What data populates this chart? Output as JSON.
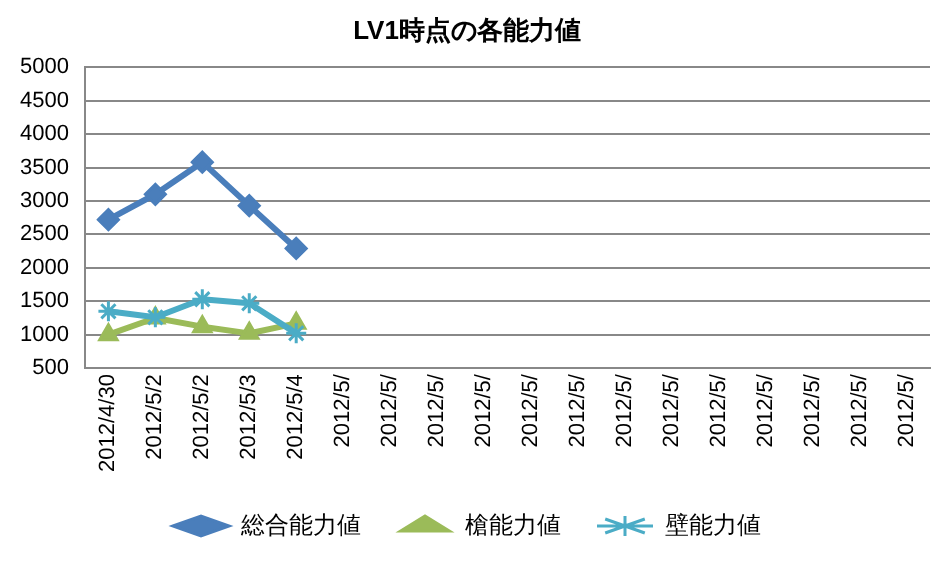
{
  "chart_data": {
    "type": "line",
    "title": "LV1時点の各能力値",
    "categories": [
      "2012/4/30",
      "2012/5/2",
      "2012/5/2",
      "2012/5/3",
      "2012/5/4",
      "2012/5/",
      "2012/5/",
      "2012/5/",
      "2012/5/",
      "2012/5/",
      "2012/5/",
      "2012/5/",
      "2012/5/",
      "2012/5/",
      "2012/5/",
      "2012/5/",
      "2012/5/",
      "2012/5/"
    ],
    "series": [
      {
        "name": "総合能力値",
        "color": "#4a7ebb",
        "marker": "diamond",
        "values": [
          2720,
          3100,
          3580,
          2930,
          2290,
          null,
          null,
          null,
          null,
          null,
          null,
          null,
          null,
          null,
          null,
          null,
          null,
          null
        ]
      },
      {
        "name": "槍能力値",
        "color": "#9bbb59",
        "marker": "triangle",
        "values": [
          1000,
          1250,
          1120,
          1020,
          1170,
          null,
          null,
          null,
          null,
          null,
          null,
          null,
          null,
          null,
          null,
          null,
          null,
          null
        ]
      },
      {
        "name": "壁能力値",
        "color": "#4bacc6",
        "marker": "cross",
        "values": [
          1350,
          1260,
          1530,
          1470,
          1020,
          null,
          null,
          null,
          null,
          null,
          null,
          null,
          null,
          null,
          null,
          null,
          null,
          null
        ]
      }
    ],
    "ylim": [
      500,
      5000
    ],
    "yticks": [
      500,
      1000,
      1500,
      2000,
      2500,
      3000,
      3500,
      4000,
      4500,
      5000
    ],
    "grid": "y",
    "legend": "bottom",
    "line_style": "solid"
  }
}
